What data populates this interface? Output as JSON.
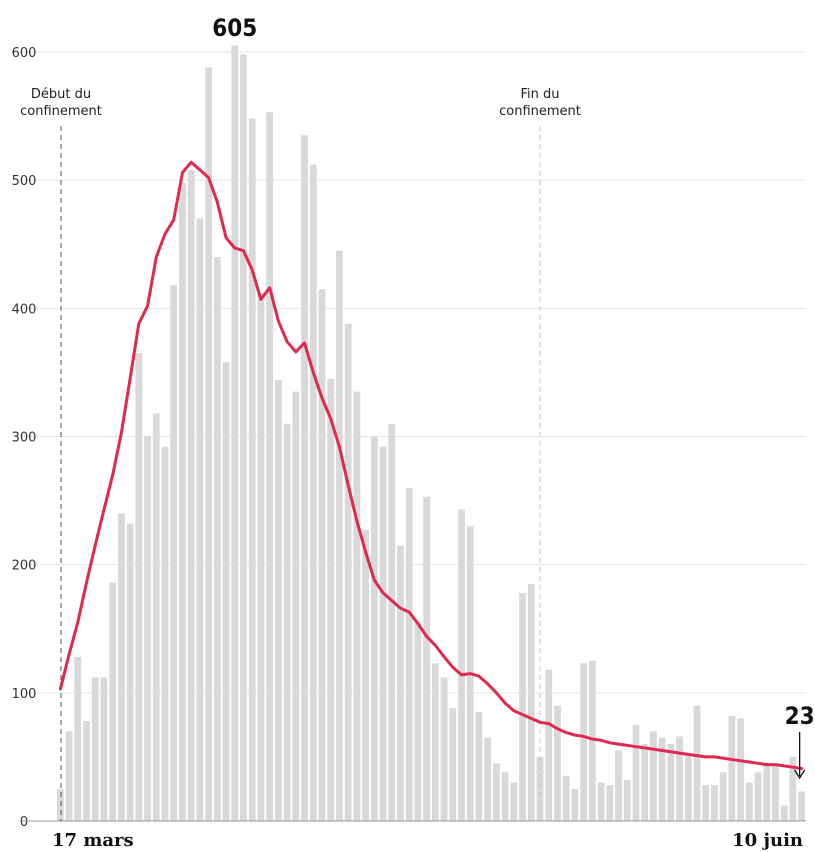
{
  "chart_data": {
    "type": "bar",
    "x_start_label": "17 mars",
    "x_end_label": "10 juin",
    "ylim": [
      0,
      600
    ],
    "yticks": [
      0,
      100,
      200,
      300,
      400,
      500,
      600
    ],
    "grid": true,
    "colors": {
      "bars": "#d9d9d9",
      "line": "#e0294f",
      "grid": "#e6e6e6"
    },
    "peak_label": "605",
    "last_label": "23",
    "annotations": [
      {
        "text_lines": [
          "Début du",
          "confinement"
        ],
        "day_index": 0,
        "style": "dashed-dark"
      },
      {
        "text_lines": [
          "Fin du",
          "confinement"
        ],
        "day_index": 55,
        "style": "dashed-light"
      }
    ],
    "values": [
      25,
      70,
      128,
      78,
      112,
      112,
      186,
      240,
      232,
      365,
      300,
      318,
      292,
      418,
      498,
      508,
      470,
      588,
      440,
      358,
      605,
      598,
      548,
      412,
      553,
      344,
      310,
      335,
      535,
      512,
      415,
      345,
      445,
      388,
      335,
      227,
      300,
      292,
      310,
      215,
      260,
      155,
      253,
      123,
      112,
      88,
      243,
      230,
      85,
      65,
      45,
      38,
      30,
      178,
      185,
      50,
      118,
      90,
      35,
      25,
      123,
      125,
      30,
      28,
      55,
      32,
      75,
      60,
      70,
      65,
      60,
      66,
      52,
      90,
      28,
      28,
      38,
      82,
      80,
      30,
      38,
      45,
      45,
      12,
      50,
      23
    ],
    "moving_avg": [
      103,
      130,
      155,
      186,
      215,
      243,
      270,
      303,
      345,
      388,
      402,
      440,
      458,
      469,
      506,
      514,
      508,
      502,
      483,
      455,
      447,
      445,
      430,
      407,
      416,
      390,
      374,
      366,
      373,
      350,
      330,
      314,
      292,
      262,
      234,
      210,
      188,
      178,
      172,
      166,
      163,
      154,
      144,
      137,
      128,
      120,
      114,
      115,
      113,
      107,
      100,
      92,
      86,
      83,
      80,
      77,
      76,
      72,
      69,
      67,
      66,
      64,
      63,
      61,
      60,
      59,
      58,
      57,
      56,
      55,
      54,
      53,
      52,
      51,
      50,
      50,
      49,
      48,
      47,
      46,
      45,
      44,
      44,
      43,
      42,
      41
    ]
  }
}
